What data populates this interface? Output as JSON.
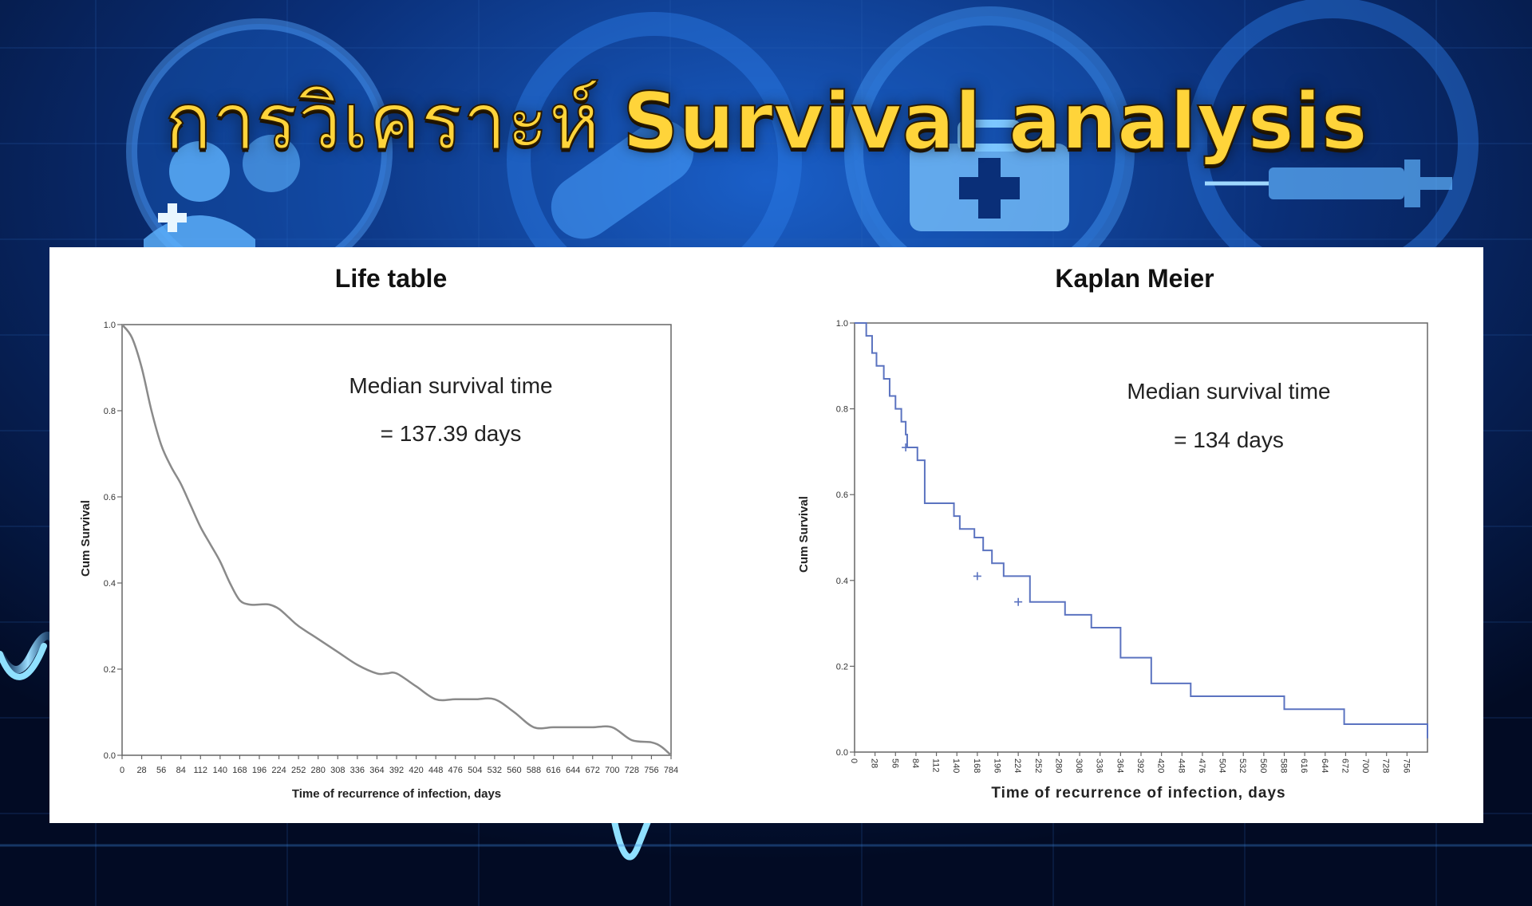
{
  "slide": {
    "title_thai": "การวิเคราะห์",
    "title_en": "Survival analysis"
  },
  "colors": {
    "title": "#ffd43a",
    "life_table_line": "#8a8a8a",
    "kaplan_meier_line": "#5b73c0",
    "background": "#041233"
  },
  "icons": [
    "doctor-icon",
    "pill-capsule-icon",
    "medical-kit-icon",
    "syringe-icon",
    "heartbeat-line-icon"
  ],
  "chart_data": [
    {
      "type": "line",
      "title": "Life table",
      "xlabel": "Time of recurrence of infection, days",
      "ylabel": "Cum Survival",
      "xlim": [
        0,
        784
      ],
      "ylim": [
        0,
        1.0
      ],
      "yticks": [
        "0.0",
        "0.2",
        "0.4",
        "0.6",
        "0.8",
        "1.0"
      ],
      "xticks": [
        0,
        28,
        56,
        84,
        112,
        140,
        168,
        196,
        224,
        252,
        280,
        308,
        336,
        364,
        392,
        420,
        448,
        476,
        504,
        532,
        560,
        588,
        616,
        644,
        672,
        700,
        728,
        756,
        784
      ],
      "annotation": [
        "Median survival time",
        "= 137.39 days"
      ],
      "series": [
        {
          "x": [
            0,
            14,
            28,
            42,
            56,
            70,
            84,
            98,
            112,
            126,
            140,
            154,
            168,
            182,
            196,
            210,
            224,
            238,
            252,
            280,
            308,
            336,
            364,
            378,
            392,
            420,
            448,
            476,
            504,
            532,
            560,
            588,
            616,
            644,
            672,
            700,
            728,
            756,
            770,
            784
          ],
          "y": [
            1.0,
            0.97,
            0.9,
            0.8,
            0.72,
            0.67,
            0.63,
            0.58,
            0.53,
            0.49,
            0.45,
            0.4,
            0.36,
            0.35,
            0.35,
            0.35,
            0.34,
            0.32,
            0.3,
            0.27,
            0.24,
            0.21,
            0.19,
            0.19,
            0.19,
            0.16,
            0.13,
            0.13,
            0.13,
            0.13,
            0.1,
            0.065,
            0.065,
            0.065,
            0.065,
            0.065,
            0.035,
            0.03,
            0.02,
            0.0
          ]
        }
      ]
    },
    {
      "type": "line",
      "title": "Kaplan Meier",
      "xlabel": "Time of recurrence of infection, days",
      "ylabel": "Cum Survival",
      "xlim": [
        0,
        784
      ],
      "ylim": [
        0,
        1.0
      ],
      "yticks": [
        "0.0",
        "0.2",
        "0.4",
        "0.6",
        "0.8",
        "1.0"
      ],
      "xticks": [
        0,
        28,
        56,
        84,
        112,
        140,
        168,
        196,
        224,
        252,
        280,
        308,
        336,
        364,
        392,
        420,
        448,
        476,
        504,
        532,
        560,
        588,
        616,
        644,
        672,
        700,
        728,
        756
      ],
      "annotation": [
        "Median survival time",
        "= 134 days"
      ],
      "series": [
        {
          "step_x": [
            10,
            16,
            24,
            30,
            40,
            48,
            56,
            64,
            70,
            72,
            86,
            96,
            112,
            128,
            136,
            144,
            164,
            176,
            188,
            204,
            240,
            264,
            288,
            324,
            364,
            406,
            460,
            520,
            588,
            670,
            752,
            784
          ],
          "step_y": [
            1.0,
            0.97,
            0.93,
            0.9,
            0.87,
            0.83,
            0.8,
            0.77,
            0.74,
            0.71,
            0.68,
            0.58,
            0.58,
            0.58,
            0.55,
            0.52,
            0.5,
            0.47,
            0.44,
            0.41,
            0.35,
            0.35,
            0.32,
            0.29,
            0.22,
            0.16,
            0.13,
            0.13,
            0.1,
            0.065,
            0.065,
            0.032
          ],
          "censored_x": [
            70,
            168,
            224
          ],
          "censored_y": [
            0.71,
            0.41,
            0.35
          ]
        }
      ]
    }
  ]
}
